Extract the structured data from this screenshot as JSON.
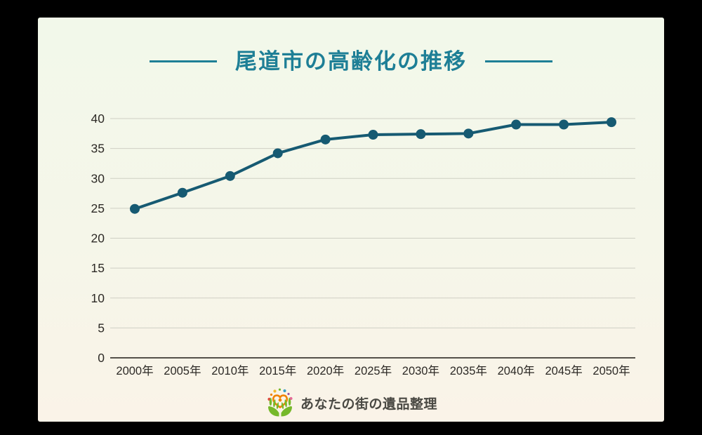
{
  "page": {
    "background": "#000000",
    "card_background_top": "#f2f8ea",
    "card_background_bottom": "#faf3e8"
  },
  "title": {
    "text": "尾道市の高齢化の推移",
    "color": "#1e7f96"
  },
  "chart_data": {
    "type": "line",
    "title": "尾道市の高齢化の推移",
    "categories": [
      "2000年",
      "2005年",
      "2010年",
      "2015年",
      "2020年",
      "2025年",
      "2030年",
      "2035年",
      "2040年",
      "2045年",
      "2050年"
    ],
    "values": [
      24.9,
      27.6,
      30.4,
      34.2,
      36.5,
      37.3,
      37.4,
      37.5,
      39.0,
      39.0,
      39.4
    ],
    "xlabel": "",
    "ylabel": "",
    "ylim": [
      0,
      40
    ],
    "ytick_step": 5,
    "grid": true,
    "legend": false,
    "line_color": "#165a72",
    "marker": "circle",
    "grid_color": "#cfcfc4",
    "axis_color": "#55514a",
    "tick_color": "#2d2a26"
  },
  "footer": {
    "logo_text": "あなたの街の遺品整理",
    "logo_icon": "hands-heart-logo-icon",
    "logo_colors": {
      "hands": "#76b82a",
      "heart": "#f08300",
      "dots": [
        "#e0463c",
        "#f08300",
        "#f2bb2e",
        "#76b82a",
        "#3a9fc8",
        "#9a52a0",
        "#e8689a"
      ]
    }
  }
}
